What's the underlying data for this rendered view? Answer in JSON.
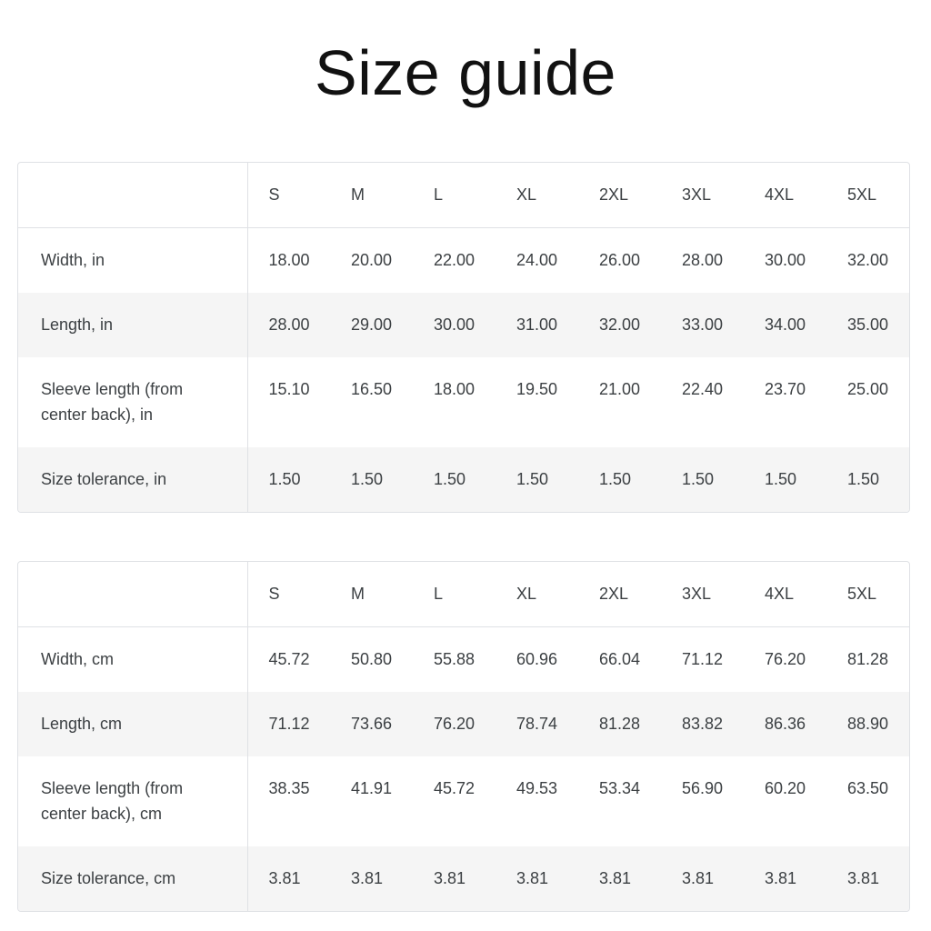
{
  "page": {
    "title": "Size guide"
  },
  "colors": {
    "background": "#ffffff",
    "table_border": "#dfe1e5",
    "zebra_row": "#f5f5f5",
    "table_text": "#3c4043",
    "title_text": "#111111"
  },
  "tables": [
    {
      "columns": [
        "S",
        "M",
        "L",
        "XL",
        "2XL",
        "3XL",
        "4XL",
        "5XL"
      ],
      "rows": [
        {
          "label": "Width, in",
          "values": [
            "18.00",
            "20.00",
            "22.00",
            "24.00",
            "26.00",
            "28.00",
            "30.00",
            "32.00"
          ]
        },
        {
          "label": "Length, in",
          "values": [
            "28.00",
            "29.00",
            "30.00",
            "31.00",
            "32.00",
            "33.00",
            "34.00",
            "35.00"
          ]
        },
        {
          "label": "Sleeve length (from center back), in",
          "values": [
            "15.10",
            "16.50",
            "18.00",
            "19.50",
            "21.00",
            "22.40",
            "23.70",
            "25.00"
          ]
        },
        {
          "label": "Size tolerance, in",
          "values": [
            "1.50",
            "1.50",
            "1.50",
            "1.50",
            "1.50",
            "1.50",
            "1.50",
            "1.50"
          ]
        }
      ]
    },
    {
      "columns": [
        "S",
        "M",
        "L",
        "XL",
        "2XL",
        "3XL",
        "4XL",
        "5XL"
      ],
      "rows": [
        {
          "label": "Width, cm",
          "values": [
            "45.72",
            "50.80",
            "55.88",
            "60.96",
            "66.04",
            "71.12",
            "76.20",
            "81.28"
          ]
        },
        {
          "label": "Length, cm",
          "values": [
            "71.12",
            "73.66",
            "76.20",
            "78.74",
            "81.28",
            "83.82",
            "86.36",
            "88.90"
          ]
        },
        {
          "label": "Sleeve length (from center back), cm",
          "values": [
            "38.35",
            "41.91",
            "45.72",
            "49.53",
            "53.34",
            "56.90",
            "60.20",
            "63.50"
          ]
        },
        {
          "label": "Size tolerance, cm",
          "values": [
            "3.81",
            "3.81",
            "3.81",
            "3.81",
            "3.81",
            "3.81",
            "3.81",
            "3.81"
          ]
        }
      ]
    }
  ]
}
